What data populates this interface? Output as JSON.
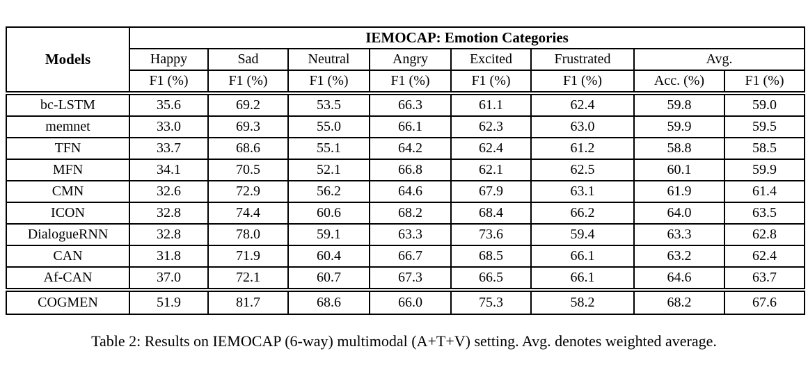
{
  "table": {
    "header": {
      "models_label": "Models",
      "group_title": "IEMOCAP: Emotion Categories",
      "categories": [
        "Happy",
        "Sad",
        "Neutral",
        "Angry",
        "Excited",
        "Frustrated"
      ],
      "avg_label": "Avg.",
      "subheaders": [
        "F1 (%)",
        "F1 (%)",
        "F1 (%)",
        "F1 (%)",
        "F1 (%)",
        "F1 (%)",
        "Acc. (%)",
        "F1 (%)"
      ]
    },
    "rows": [
      {
        "model": "bc-LSTM",
        "bold_model": false,
        "values": [
          "35.6",
          "69.2",
          "53.5",
          "66.3",
          "61.1",
          "62.4",
          "59.8",
          "59.0"
        ],
        "bold": []
      },
      {
        "model": "memnet",
        "bold_model": false,
        "values": [
          "33.0",
          "69.3",
          "55.0",
          "66.1",
          "62.3",
          "63.0",
          "59.9",
          "59.5"
        ],
        "bold": []
      },
      {
        "model": "TFN",
        "bold_model": false,
        "values": [
          "33.7",
          "68.6",
          "55.1",
          "64.2",
          "62.4",
          "61.2",
          "58.8",
          "58.5"
        ],
        "bold": []
      },
      {
        "model": "MFN",
        "bold_model": false,
        "values": [
          "34.1",
          "70.5",
          "52.1",
          "66.8",
          "62.1",
          "62.5",
          "60.1",
          "59.9"
        ],
        "bold": []
      },
      {
        "model": "CMN",
        "bold_model": false,
        "values": [
          "32.6",
          "72.9",
          "56.2",
          "64.6",
          "67.9",
          "63.1",
          "61.9",
          "61.4"
        ],
        "bold": []
      },
      {
        "model": "ICON",
        "bold_model": false,
        "values": [
          "32.8",
          "74.4",
          "60.6",
          "68.2",
          "68.4",
          "66.2",
          "64.0",
          "63.5"
        ],
        "bold": [
          5
        ]
      },
      {
        "model": "DialogueRNN",
        "bold_model": false,
        "values": [
          "32.8",
          "78.0",
          "59.1",
          "63.3",
          "73.6",
          "59.4",
          "63.3",
          "62.8"
        ],
        "bold": []
      },
      {
        "model": "CAN",
        "bold_model": false,
        "values": [
          "31.8",
          "71.9",
          "60.4",
          "66.7",
          "68.5",
          "66.1",
          "63.2",
          "62.4"
        ],
        "bold": []
      },
      {
        "model": "Af-CAN",
        "bold_model": false,
        "values": [
          "37.0",
          "72.1",
          "60.7",
          "67.3",
          "66.5",
          "66.1",
          "64.6",
          "63.7"
        ],
        "bold": [
          3
        ]
      },
      {
        "model": "COGMEN",
        "bold_model": true,
        "separator_above": true,
        "values": [
          "51.9",
          "81.7",
          "68.6",
          "66.0",
          "75.3",
          "58.2",
          "68.2",
          "67.6"
        ],
        "bold": [
          0,
          1,
          2,
          4,
          6,
          7
        ]
      }
    ]
  },
  "caption": "Table 2: Results on IEMOCAP (6-way) multimodal (A+T+V) setting. Avg. denotes weighted average."
}
